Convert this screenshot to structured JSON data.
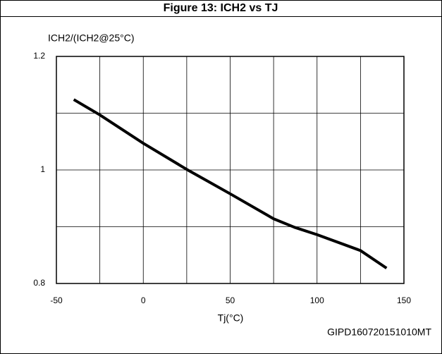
{
  "chart_data": {
    "type": "line",
    "title": "Figure 13: ICH2 vs TJ",
    "ylabel": "ICH2/(ICH2@25°C)",
    "xlabel": "Tj(°C)",
    "note": "GIPD160720151010MT",
    "x": [
      -40,
      -25,
      0,
      25,
      50,
      75,
      87,
      100,
      125,
      140
    ],
    "series": [
      {
        "name": "ICH2",
        "color": "#000000",
        "values": [
          1.124,
          1.097,
          1.047,
          1.001,
          0.958,
          0.914,
          0.899,
          0.886,
          0.858,
          0.827
        ]
      }
    ],
    "xlim": [
      -50,
      150
    ],
    "xticks": [
      -50,
      0,
      50,
      100,
      150
    ],
    "xgrid": [
      -25,
      25,
      75,
      125
    ],
    "ylim": [
      0.8,
      1.2
    ],
    "yticks": [
      0.8,
      1,
      1.2
    ],
    "ygrid": [
      0.9,
      1.1
    ],
    "grid": true
  }
}
